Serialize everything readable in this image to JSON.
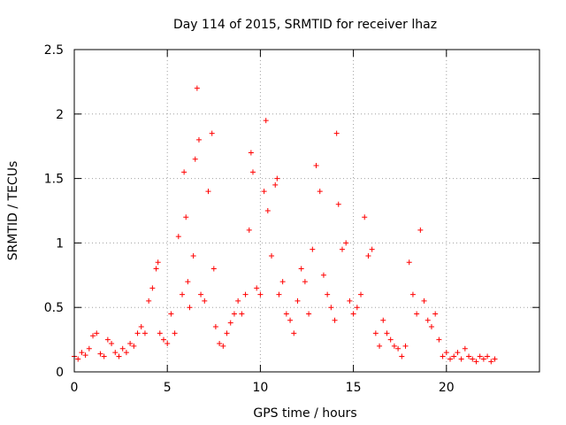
{
  "chart_data": {
    "type": "scatter",
    "title": "Day 114 of 2015, SRMTID for receiver lhaz",
    "xlabel": "GPS time / hours",
    "ylabel": "SRMTID / TECUs",
    "xlim": [
      0,
      25
    ],
    "ylim": [
      0,
      2.5
    ],
    "xticks": [
      0,
      5,
      10,
      15,
      20
    ],
    "yticks": [
      0,
      0.5,
      1,
      1.5,
      2,
      2.5
    ],
    "ytick_labels": [
      "0",
      "0.5",
      "1",
      "1.5",
      "2",
      "2.5"
    ],
    "grid": true,
    "marker": "+",
    "color": "#ff0000",
    "series": [
      {
        "name": "SRMTID",
        "x": [
          0.0,
          0.2,
          0.4,
          0.6,
          0.8,
          1.0,
          1.2,
          1.4,
          1.6,
          1.8,
          2.0,
          2.2,
          2.4,
          2.6,
          2.8,
          3.0,
          3.2,
          3.4,
          3.6,
          3.8,
          4.0,
          4.2,
          4.4,
          4.5,
          4.6,
          4.8,
          5.0,
          5.2,
          5.4,
          5.6,
          5.8,
          5.9,
          6.0,
          6.1,
          6.2,
          6.4,
          6.5,
          6.6,
          6.7,
          6.8,
          7.0,
          7.2,
          7.4,
          7.5,
          7.6,
          7.8,
          8.0,
          8.2,
          8.4,
          8.6,
          8.8,
          9.0,
          9.2,
          9.4,
          9.5,
          9.6,
          9.8,
          10.0,
          10.2,
          10.3,
          10.4,
          10.6,
          10.8,
          10.9,
          11.0,
          11.2,
          11.4,
          11.6,
          11.8,
          12.0,
          12.2,
          12.4,
          12.6,
          12.8,
          13.0,
          13.2,
          13.4,
          13.6,
          13.8,
          14.0,
          14.1,
          14.2,
          14.4,
          14.6,
          14.8,
          15.0,
          15.2,
          15.4,
          15.6,
          15.8,
          16.0,
          16.2,
          16.4,
          16.6,
          16.8,
          17.0,
          17.2,
          17.4,
          17.6,
          17.8,
          18.0,
          18.2,
          18.4,
          18.6,
          18.8,
          19.0,
          19.2,
          19.4,
          19.6,
          19.8,
          20.0,
          20.2,
          20.4,
          20.6,
          20.8,
          21.0,
          21.2,
          21.4,
          21.6,
          21.8,
          22.0,
          22.2,
          22.4,
          22.6
        ],
        "y": [
          0.12,
          0.1,
          0.15,
          0.13,
          0.18,
          0.28,
          0.3,
          0.14,
          0.12,
          0.25,
          0.22,
          0.15,
          0.12,
          0.18,
          0.15,
          0.22,
          0.2,
          0.3,
          0.35,
          0.3,
          0.55,
          0.65,
          0.8,
          0.85,
          0.3,
          0.25,
          0.22,
          0.45,
          0.3,
          1.05,
          0.6,
          1.55,
          1.2,
          0.7,
          0.5,
          0.9,
          1.65,
          2.2,
          1.8,
          0.6,
          0.55,
          1.4,
          1.85,
          0.8,
          0.35,
          0.22,
          0.2,
          0.3,
          0.38,
          0.45,
          0.55,
          0.45,
          0.6,
          1.1,
          1.7,
          1.55,
          0.65,
          0.6,
          1.4,
          1.95,
          1.25,
          0.9,
          1.45,
          1.5,
          0.6,
          0.7,
          0.45,
          0.4,
          0.3,
          0.55,
          0.8,
          0.7,
          0.45,
          0.95,
          1.6,
          1.4,
          0.75,
          0.6,
          0.5,
          0.4,
          1.85,
          1.3,
          0.95,
          1.0,
          0.55,
          0.45,
          0.5,
          0.6,
          1.2,
          0.9,
          0.95,
          0.3,
          0.2,
          0.4,
          0.3,
          0.25,
          0.2,
          0.18,
          0.12,
          0.2,
          0.85,
          0.6,
          0.45,
          1.1,
          0.55,
          0.4,
          0.35,
          0.45,
          0.25,
          0.12,
          0.15,
          0.1,
          0.12,
          0.15,
          0.1,
          0.18,
          0.12,
          0.1,
          0.08,
          0.12,
          0.1,
          0.12,
          0.08,
          0.1
        ]
      }
    ]
  }
}
